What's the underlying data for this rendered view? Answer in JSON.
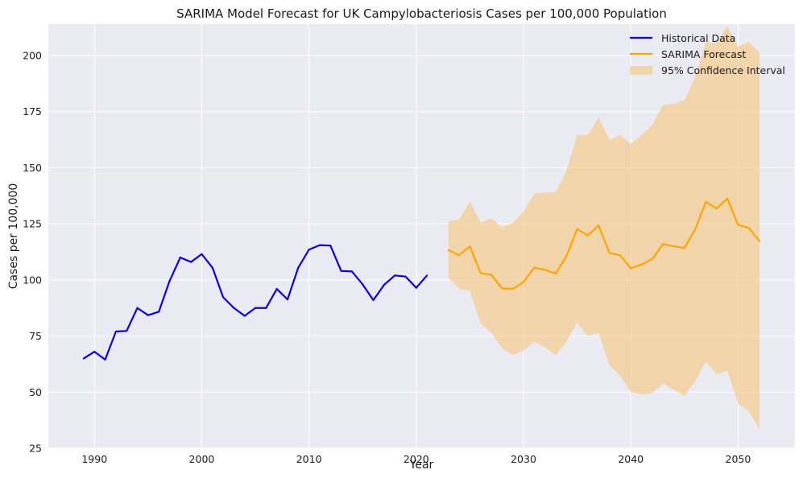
{
  "chart_data": {
    "type": "line",
    "title": "SARIMA Model Forecast for UK Campylobacteriosis Cases per 100,000 Population",
    "xlabel": "Year",
    "ylabel": "Cases per 100,000",
    "xlim": [
      1985.7,
      2055.3
    ],
    "ylim": [
      25,
      214
    ],
    "xticks": [
      1990,
      2000,
      2010,
      2020,
      2030,
      2040,
      2050
    ],
    "yticks": [
      25,
      50,
      75,
      100,
      125,
      150,
      175,
      200
    ],
    "grid": true,
    "legend_position": "top-right",
    "colors": {
      "historical": "#0a00f0",
      "forecast": "#ffa500",
      "ci_fill": "#f5c77e",
      "plot_bg": "#eaeaf2",
      "grid": "#ffffff"
    },
    "legend": {
      "historical": "Historical Data",
      "forecast": "SARIMA Forecast",
      "ci": "95% Confidence Interval"
    },
    "historical": {
      "name": "Historical Data",
      "x": [
        1989,
        1990,
        1991,
        1992,
        1993,
        1994,
        1995,
        1996,
        1997,
        1998,
        1999,
        2000,
        2001,
        2002,
        2003,
        2004,
        2005,
        2006,
        2007,
        2008,
        2009,
        2010,
        2011,
        2012,
        2013,
        2014,
        2015,
        2016,
        2017,
        2018,
        2019,
        2020,
        2021
      ],
      "values": [
        65,
        68,
        64.5,
        77,
        77.3,
        87.5,
        84.3,
        85.8,
        99.5,
        110,
        108,
        111.5,
        105.5,
        92.3,
        87.5,
        84,
        87.5,
        87.5,
        96,
        91.3,
        105.5,
        113.5,
        115.5,
        115.3,
        104,
        103.8,
        98,
        91,
        97.8,
        102,
        101.5,
        96.5,
        102
      ]
    },
    "forecast": {
      "name": "SARIMA Forecast",
      "x": [
        2023,
        2024,
        2025,
        2026,
        2027,
        2028,
        2029,
        2030,
        2031,
        2032,
        2033,
        2034,
        2035,
        2036,
        2037,
        2038,
        2039,
        2040,
        2041,
        2042,
        2043,
        2044,
        2045,
        2046,
        2047,
        2048,
        2049,
        2050,
        2051,
        2052
      ],
      "values": [
        113.3,
        111,
        115,
        103,
        102.3,
        96.2,
        96,
        99,
        105.5,
        104.5,
        102.8,
        110.5,
        122.7,
        119.8,
        124.3,
        112,
        111,
        105.2,
        106.8,
        109.3,
        116,
        115,
        114.2,
        122.5,
        134.8,
        131.8,
        136.3,
        124.5,
        123.2,
        117.3
      ],
      "lower": [
        101,
        96,
        95,
        80.5,
        76.5,
        69.5,
        66.5,
        68.5,
        72.5,
        70,
        66.5,
        72.5,
        81,
        75,
        76.5,
        62,
        57.5,
        50,
        49,
        49.5,
        54,
        51,
        48.5,
        55,
        63.5,
        58,
        59.5,
        45,
        41.5,
        33.5
      ],
      "upper": [
        126,
        127,
        135,
        125.5,
        127.5,
        123.5,
        125.5,
        130.5,
        138.5,
        139,
        139,
        148.5,
        164.5,
        164.5,
        172.5,
        162.5,
        164.5,
        160.5,
        164.5,
        169,
        178,
        178.5,
        180,
        190.5,
        206,
        205.5,
        213,
        204,
        206,
        201.5
      ]
    }
  }
}
